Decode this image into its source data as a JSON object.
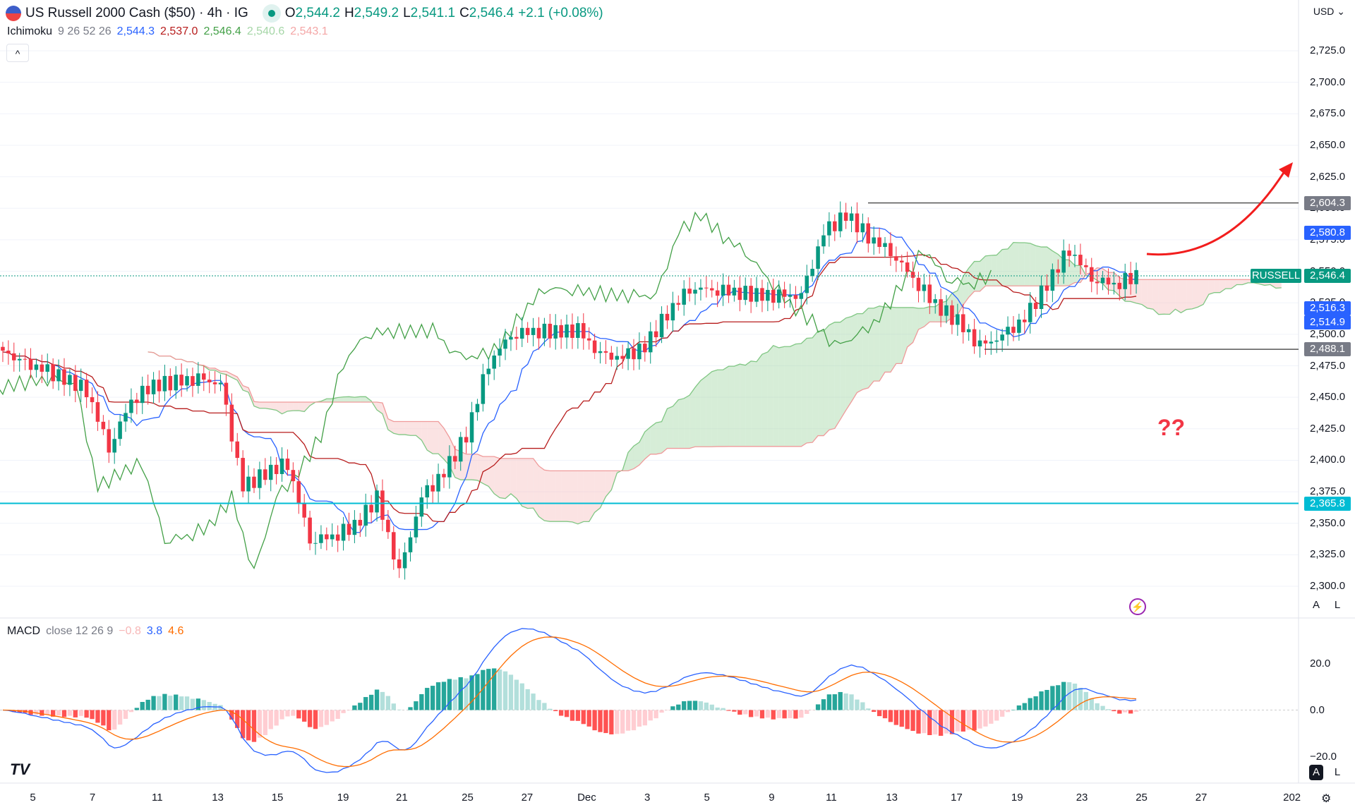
{
  "header": {
    "symbol": "US Russell 2000 Cash ($50) · 4h · IG",
    "open_label": "O",
    "open": "2,544.2",
    "high_label": "H",
    "high": "2,549.2",
    "low_label": "L",
    "low": "2,541.1",
    "close_label": "C",
    "close": "2,546.4",
    "change": "+2.1 (+0.08%)"
  },
  "currency": "USD",
  "ichimoku": {
    "name": "Ichimoku",
    "params": "9 26 52 26",
    "tenkan": "2,544.3",
    "kijun": "2,537.0",
    "chikou": "2,546.4",
    "span_a": "2,540.6",
    "span_b": "2,543.1"
  },
  "macd": {
    "name": "MACD",
    "params": "close 12 26 9",
    "hist": "−0.8",
    "macd": "3.8",
    "signal": "4.6",
    "ticks": [
      "20.0",
      "0.0",
      "−20.0"
    ]
  },
  "price_axis": [
    "2,725.0",
    "2,700.0",
    "2,675.0",
    "2,650.0",
    "2,625.0",
    "2,600.0",
    "2,575.0",
    "2,550.0",
    "2,525.0",
    "2,500.0",
    "2,475.0",
    "2,450.0",
    "2,425.0",
    "2,400.0",
    "2,375.0",
    "2,350.0",
    "2,325.0",
    "2,300.0"
  ],
  "price_tags": {
    "resistance": "2,604.3",
    "tenkan_tag": "2,580.8",
    "symbol_tag": "RUSSELL",
    "last": "2,546.4",
    "blue1": "2,516.3",
    "blue2": "2,514.9",
    "support": "2,488.1",
    "cyan": "2,365.8"
  },
  "levels": {
    "resistance": 2604.3,
    "support": 2488.1,
    "cyan": 2365.8,
    "last": 2546.4
  },
  "time_axis": [
    "5",
    "7",
    "11",
    "13",
    "15",
    "19",
    "21",
    "25",
    "27",
    "Dec",
    "3",
    "5",
    "9",
    "11",
    "13",
    "17",
    "19",
    "23",
    "25",
    "27",
    "202"
  ],
  "annotation": "??",
  "auto_label": "A",
  "log_label": "L",
  "colors": {
    "up": "#089981",
    "down": "#f23645",
    "tenkan": "#2962ff",
    "kijun": "#b71c1c",
    "chikou": "#43a047",
    "cloud_up": "#a5d6a7",
    "cloud_down": "#f7c1c1",
    "cyan": "#00bcd4",
    "macd": "#2962ff",
    "signal": "#ff6d00",
    "arrow": "#f21d1d"
  },
  "closes": [
    2490,
    2478,
    2472,
    2465,
    2456,
    2410,
    2448,
    2460,
    2462,
    2464,
    2460,
    2378,
    2390,
    2398,
    2337,
    2340,
    2348,
    2370,
    2310,
    2370,
    2390,
    2420,
    2478,
    2500,
    2503,
    2502,
    2503,
    2483,
    2481,
    2490,
    2517,
    2537,
    2536,
    2534,
    2531,
    2530,
    2530,
    2580,
    2595,
    2578,
    2566,
    2545,
    2524,
    2510,
    2490,
    2498,
    2512,
    2540,
    2568,
    2545,
    2540,
    2546.4
  ]
}
